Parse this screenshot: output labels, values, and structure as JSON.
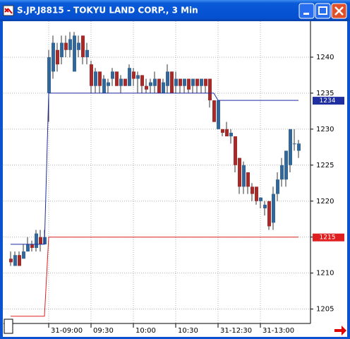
{
  "chart_data": {
    "type": "candlestick",
    "title": "S.JP.J8815 - TOKYU LAND CORP., 3 Min",
    "categories": [
      null,
      null,
      null,
      null,
      null,
      null,
      null,
      null,
      null,
      "31-09:00",
      null,
      null,
      null,
      null,
      null,
      null,
      null,
      null,
      null,
      "09:30",
      null,
      null,
      null,
      null,
      null,
      null,
      null,
      null,
      null,
      "10:00",
      null,
      null,
      null,
      null,
      null,
      null,
      null,
      null,
      null,
      "10:30",
      null,
      null,
      null,
      null,
      null,
      null,
      null,
      null,
      null,
      "31-12:30",
      null,
      null,
      null,
      null,
      null,
      null,
      null,
      null,
      null,
      "31-13:00",
      null,
      null,
      null,
      null,
      null,
      null,
      null,
      null,
      null
    ],
    "open": [
      1212,
      1211,
      1212.5,
      1212,
      1213,
      1214,
      1213.5,
      1215,
      1214,
      1235,
      1238,
      1241,
      1240,
      1242,
      1241,
      1238,
      1241,
      1243,
      1240,
      1239,
      1236,
      1238,
      1235,
      1236,
      1237,
      1238,
      1236,
      1237,
      1236,
      1238,
      1237,
      1237.5,
      1236,
      1236,
      1236,
      1237,
      1235,
      1236,
      1238,
      1236,
      1237,
      1236,
      1237,
      1236,
      1237,
      1236,
      1237,
      1237,
      1234,
      1230,
      1230,
      1230,
      1229,
      1229,
      1226,
      1222,
      1224,
      1222,
      1222,
      1220,
      1219,
      1220,
      1217,
      1221,
      1223,
      1223,
      1225,
      1228,
      1227
    ],
    "high": [
      1213,
      1213,
      1213,
      1214,
      1215,
      1214.5,
      1216,
      1216,
      1216,
      1241,
      1243,
      1242,
      1243,
      1243,
      1243.5,
      1243.5,
      1243,
      1243,
      1242,
      1239.5,
      1238.5,
      1238,
      1237.5,
      1237,
      1238.5,
      1238,
      1237.5,
      1237,
      1239,
      1238.5,
      1238,
      1237.5,
      1237,
      1237,
      1238,
      1237,
      1237,
      1239,
      1238,
      1238,
      1237,
      1237,
      1237,
      1237,
      1237,
      1237,
      1237,
      1237,
      1234,
      1234,
      1230,
      1231,
      1230,
      1229,
      1226,
      1225.5,
      1224,
      1222.5,
      1222,
      1220.5,
      1220,
      1220,
      1222,
      1224,
      1226,
      1227,
      1230,
      1230,
      1228.5
    ],
    "low": [
      1211,
      1211,
      1211,
      1212,
      1213,
      1213,
      1213,
      1213,
      1214,
      1231,
      1237,
      1238,
      1239,
      1240,
      1240,
      1238,
      1240,
      1239,
      1239,
      1235,
      1235,
      1235,
      1235,
      1235,
      1236,
      1236,
      1235,
      1236,
      1236,
      1236,
      1235,
      1235,
      1235,
      1235,
      1235,
      1235,
      1235,
      1235,
      1235,
      1235,
      1235,
      1235,
      1235,
      1235,
      1235,
      1235,
      1235,
      1233,
      1231,
      1230,
      1229,
      1229,
      1228,
      1224,
      1221,
      1221,
      1221,
      1220,
      1219.5,
      1219,
      1218,
      1216,
      1216,
      1220,
      1222,
      1222,
      1224,
      1227,
      1226
    ],
    "close": [
      1211.5,
      1212.5,
      1211,
      1213,
      1214,
      1213.5,
      1215.5,
      1214,
      1215,
      1240,
      1242,
      1239,
      1242,
      1241,
      1242.5,
      1243,
      1242,
      1240,
      1241,
      1236,
      1238,
      1236,
      1237,
      1236.5,
      1238,
      1236,
      1237,
      1236,
      1238.5,
      1237,
      1237.5,
      1236,
      1235.5,
      1236.5,
      1237,
      1235,
      1236.5,
      1238,
      1235,
      1237,
      1236,
      1237,
      1235.5,
      1237,
      1236,
      1237,
      1236,
      1234,
      1231,
      1234,
      1229.5,
      1229,
      1229.5,
      1225,
      1222,
      1225,
      1222,
      1221,
      1220,
      1220.5,
      1219.5,
      1216.5,
      1221,
      1223,
      1225,
      1227,
      1230,
      1228,
      1228
    ],
    "up_color": "#336699",
    "down_color": "#a52a2a",
    "lines": [
      {
        "color": "#1f2fa0",
        "values": [
          1214,
          1214,
          1214,
          1214,
          1214,
          1214,
          1214,
          1214,
          1214,
          1235,
          1235,
          1235,
          1235,
          1235,
          1235,
          1235,
          1235,
          1235,
          1235,
          1235,
          1235,
          1235,
          1235,
          1235,
          1235,
          1235,
          1235,
          1235,
          1235,
          1235,
          1235,
          1235,
          1235,
          1235,
          1235,
          1235,
          1235,
          1235,
          1235,
          1235,
          1235,
          1235,
          1235,
          1235,
          1235,
          1235,
          1235,
          1235,
          1235,
          1234,
          1234,
          1234,
          1234,
          1234,
          1234,
          1234,
          1234,
          1234,
          1234,
          1234,
          1234,
          1234,
          1234,
          1234,
          1234,
          1234,
          1234,
          1234,
          1234
        ]
      },
      {
        "color": "#e02020",
        "values": [
          1204,
          1204,
          1204,
          1204,
          1204,
          1204,
          1204,
          1204,
          1204,
          1215,
          1215,
          1215,
          1215,
          1215,
          1215,
          1215,
          1215,
          1215,
          1215,
          1215,
          1215,
          1215,
          1215,
          1215,
          1215,
          1215,
          1215,
          1215,
          1215,
          1215,
          1215,
          1215,
          1215,
          1215,
          1215,
          1215,
          1215,
          1215,
          1215,
          1215,
          1215,
          1215,
          1215,
          1215,
          1215,
          1215,
          1215,
          1215,
          1215,
          1215,
          1215,
          1215,
          1215,
          1215,
          1215,
          1215,
          1215,
          1215,
          1215,
          1215,
          1215,
          1215,
          1215,
          1215,
          1215,
          1215,
          1215,
          1215,
          1215
        ]
      }
    ],
    "ylim": [
      1203,
      1245
    ],
    "yticks": [
      1205,
      1210,
      1215,
      1220,
      1225,
      1230,
      1235,
      1240
    ],
    "grid": true
  }
}
